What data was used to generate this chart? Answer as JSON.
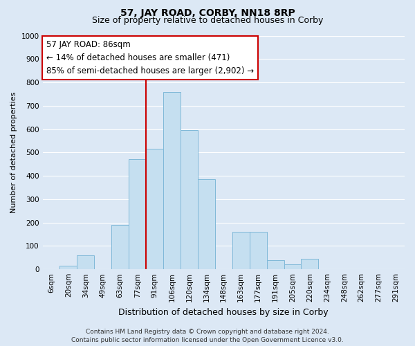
{
  "title": "57, JAY ROAD, CORBY, NN18 8RP",
  "subtitle": "Size of property relative to detached houses in Corby",
  "xlabel": "Distribution of detached houses by size in Corby",
  "ylabel": "Number of detached properties",
  "bar_labels": [
    "6sqm",
    "20sqm",
    "34sqm",
    "49sqm",
    "63sqm",
    "77sqm",
    "91sqm",
    "106sqm",
    "120sqm",
    "134sqm",
    "148sqm",
    "163sqm",
    "177sqm",
    "191sqm",
    "205sqm",
    "220sqm",
    "234sqm",
    "248sqm",
    "262sqm",
    "277sqm",
    "291sqm"
  ],
  "bar_values": [
    0,
    15,
    60,
    0,
    190,
    470,
    515,
    760,
    595,
    385,
    0,
    160,
    160,
    40,
    20,
    45,
    0,
    0,
    0,
    0,
    0
  ],
  "bar_color": "#c5dff0",
  "bar_edge_color": "#7fb8d8",
  "vline_color": "#cc0000",
  "vline_x_index": 5.5,
  "annotation_line1": "57 JAY ROAD: 86sqm",
  "annotation_line2": "← 14% of detached houses are smaller (471)",
  "annotation_line3": "85% of semi-detached houses are larger (2,902) →",
  "annotation_box_color": "white",
  "annotation_box_edge_color": "#cc0000",
  "ylim": [
    0,
    1000
  ],
  "yticks": [
    0,
    100,
    200,
    300,
    400,
    500,
    600,
    700,
    800,
    900,
    1000
  ],
  "background_color": "#dce8f5",
  "plot_bg_color": "#dce8f5",
  "footer_line1": "Contains HM Land Registry data © Crown copyright and database right 2024.",
  "footer_line2": "Contains public sector information licensed under the Open Government Licence v3.0.",
  "title_fontsize": 10,
  "subtitle_fontsize": 9,
  "xlabel_fontsize": 9,
  "ylabel_fontsize": 8,
  "tick_fontsize": 7.5,
  "annotation_fontsize": 8.5,
  "footer_fontsize": 6.5
}
